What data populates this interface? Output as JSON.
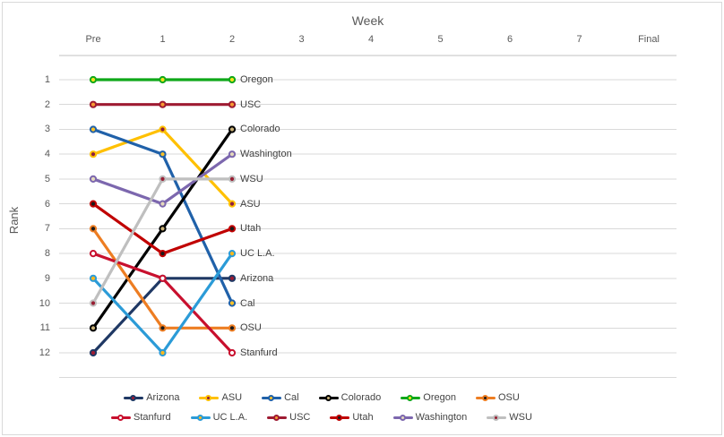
{
  "chart_data": {
    "type": "line",
    "subtype": "bump-rank-chart",
    "title": "Week",
    "xlabel": "Week",
    "ylabel": "Rank",
    "x_categories": [
      "Pre",
      "1",
      "2",
      "3",
      "4",
      "5",
      "6",
      "7",
      "Final"
    ],
    "weeks_with_data": [
      "Pre",
      "1",
      "2"
    ],
    "y_ticks": [
      "1",
      "2",
      "3",
      "4",
      "5",
      "6",
      "7",
      "8",
      "9",
      "10",
      "11",
      "12"
    ],
    "ylim": [
      1,
      13
    ],
    "y_axis_reversed": true,
    "grid": true,
    "legend_position": "bottom",
    "colors": {
      "background": "#FFFFFF",
      "border": "#D9D9D9",
      "gridline": "#D9D9D9",
      "axis_line": "#C0C0C0",
      "axis_text": "#595959",
      "data_label_text": "#3F3F3F",
      "legend_text": "#444444"
    },
    "series": [
      {
        "name": "Arizona",
        "values": [
          12,
          9,
          9
        ],
        "line_color": "#1F3864",
        "marker_fill": "#9E1B32"
      },
      {
        "name": "ASU",
        "values": [
          4,
          3,
          6
        ],
        "line_color": "#FFC000",
        "marker_fill": "#8C1D40"
      },
      {
        "name": "Cal",
        "values": [
          3,
          4,
          10
        ],
        "line_color": "#2061A9",
        "marker_fill": "#FFC326"
      },
      {
        "name": "Colorado",
        "values": [
          11,
          7,
          3
        ],
        "line_color": "#000000",
        "marker_fill": "#C9B177"
      },
      {
        "name": "Oregon",
        "values": [
          1,
          1,
          1
        ],
        "line_color": "#0FA819",
        "marker_fill": "#F7E31C"
      },
      {
        "name": "OSU",
        "values": [
          7,
          11,
          11
        ],
        "line_color": "#ED7D22",
        "marker_fill": "#1A1A1A"
      },
      {
        "name": "Stanfurd",
        "values": [
          8,
          9,
          12
        ],
        "line_color": "#C8102E",
        "marker_fill": "#FFFFFF"
      },
      {
        "name": "UC L.A.",
        "values": [
          9,
          12,
          8
        ],
        "line_color": "#2B9BD7",
        "marker_fill": "#FFB81C"
      },
      {
        "name": "USC",
        "values": [
          2,
          2,
          2
        ],
        "line_color": "#9E1B32",
        "marker_fill": "#F99B32"
      },
      {
        "name": "Utah",
        "values": [
          6,
          8,
          7
        ],
        "line_color": "#C00000",
        "marker_fill": "#1A1A1A"
      },
      {
        "name": "Washington",
        "values": [
          5,
          6,
          4
        ],
        "line_color": "#7C67AE",
        "marker_fill": "#E4D9BC"
      },
      {
        "name": "WSU",
        "values": [
          10,
          5,
          5
        ],
        "line_color": "#BFBFBF",
        "marker_fill": "#981E32"
      }
    ],
    "end_labels": [
      "Oregon",
      "USC",
      "Colorado",
      "Washington",
      "WSU",
      "ASU",
      "Utah",
      "UC L.A.",
      "Arizona",
      "Cal",
      "OSU",
      "Stanfurd"
    ],
    "legend_rows": [
      [
        "Arizona",
        "ASU",
        "Cal",
        "Colorado",
        "Oregon",
        "OSU"
      ],
      [
        "Stanfurd",
        "UC L.A.",
        "USC",
        "Utah",
        "Washington",
        "WSU"
      ]
    ]
  }
}
